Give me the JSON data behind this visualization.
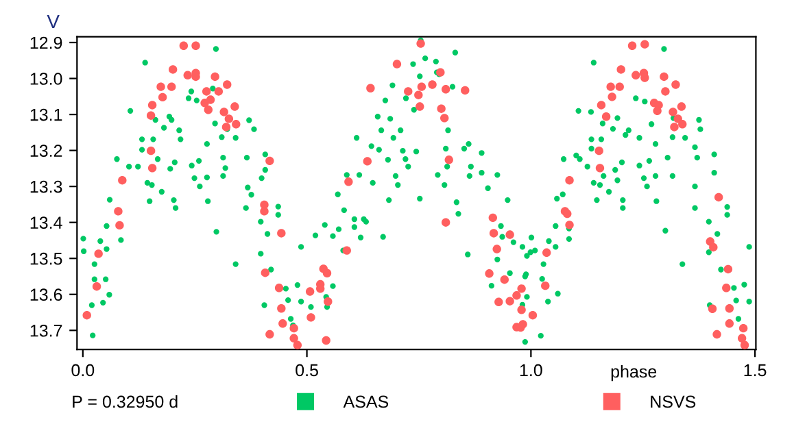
{
  "chart_data": {
    "type": "scatter",
    "ylabel": "V",
    "xlabel": "phase",
    "annotations": [
      "P = 0.32950 d"
    ],
    "xlim": [
      -0.013,
      1.502
    ],
    "xticks": [
      {
        "value": 0.0,
        "label": "0.0"
      },
      {
        "value": 0.5,
        "label": "0.5"
      },
      {
        "value": 1.0,
        "label": "1.0"
      },
      {
        "value": 1.5,
        "label": "1.5"
      }
    ],
    "ylim": [
      13.753,
      12.884
    ],
    "yticks": [
      12.9,
      {
        "value": 13.0,
        "label": "13.0"
      },
      13.1,
      13.2,
      13.3,
      13.4,
      13.5,
      13.6,
      13.7
    ],
    "grid": false,
    "legend": "bottom",
    "marker": "circle",
    "series": [
      {
        "name": "ASAS",
        "color": "#00c864",
        "x": [
          0.001,
          0.002,
          0.026,
          0.026,
          0.02,
          0.022,
          0.039,
          0.053,
          0.051,
          0.045,
          0.059,
          0.053,
          0.06,
          0.076,
          0.085,
          0.106,
          0.103,
          0.123,
          0.139,
          0.132,
          0.132,
          0.144,
          0.149,
          0.157,
          0.162,
          0.167,
          0.154,
          0.181,
          0.176,
          0.193,
          0.195,
          0.198,
          0.205,
          0.203,
          0.207,
          0.215,
          0.218,
          0.236,
          0.242,
          0.243,
          0.254,
          0.249,
          0.261,
          0.259,
          0.277,
          0.277,
          0.279,
          0.29,
          0.297,
          0.295,
          0.298,
          0.31,
          0.313,
          0.313,
          0.318,
          0.322,
          0.341,
          0.341,
          0.371,
          0.366,
          0.368,
          0.364,
          0.376,
          0.382,
          0.407,
          0.399,
          0.397,
          0.405,
          0.397,
          0.412,
          0.407,
          0.436,
          0.436,
          0.42,
          0.453,
          0.458,
          0.464,
          0.469,
          0.479,
          0.487,
          0.487,
          0.509,
          0.519,
          0.54,
          0.543,
          0.545,
          0.558,
          0.558,
          0.569,
          0.571,
          0.581,
          0.583,
          0.589,
          0.606,
          0.606,
          0.611,
          0.617,
          0.62,
          0.627,
          0.632,
          0.644,
          0.647,
          0.658,
          0.661,
          0.666,
          0.67,
          0.675,
          0.681,
          0.683,
          0.686,
          0.691,
          0.693,
          0.698,
          0.703,
          0.709,
          0.714,
          0.72,
          0.721,
          0.726,
          0.737,
          0.739,
          0.744,
          0.752,
          0.752,
          0.754,
          0.764,
          0.788,
          0.79,
          0.792,
          0.795,
          0.807,
          0.81,
          0.813,
          0.815,
          0.825,
          0.831,
          0.834,
          0.838,
          0.851,
          0.861,
          0.863,
          0.866,
          0.89,
          0.89,
          0.904,
          0.925,
          0.859,
          0.912,
          0.925,
          0.933,
          0.936,
          0.948,
          0.953,
          0.961,
          0.981,
          0.987,
          0.987,
          0.999,
          0.981,
          1.022,
          1.001,
          1.009,
          0.991,
          0.989,
          0.991,
          1.025,
          1.028,
          1.04,
          1.038,
          1.055,
          1.055,
          1.06,
          1.058,
          1.071,
          1.073,
          1.085,
          1.085,
          1.101,
          1.106,
          1.109,
          1.126,
          1.134,
          1.135,
          1.135,
          1.14,
          1.14,
          1.147,
          1.154,
          1.157,
          1.16,
          1.162,
          1.174,
          1.183,
          1.188,
          1.193,
          1.193,
          1.203,
          1.205,
          1.205,
          1.211,
          1.218,
          1.234,
          1.242,
          1.242,
          1.252,
          1.254,
          1.259,
          1.264,
          1.269,
          1.278,
          1.278,
          1.28,
          1.297,
          1.3,
          1.305,
          1.316,
          1.316,
          1.318,
          1.338,
          1.344,
          1.366,
          1.371,
          1.366,
          1.366,
          1.378,
          1.375,
          1.397,
          1.397,
          1.399,
          1.409,
          1.409,
          1.416,
          1.424,
          1.438,
          1.438,
          1.453,
          1.458,
          1.463,
          1.476,
          1.487,
          1.487
        ],
        "values": [
          13.445,
          13.48,
          13.516,
          13.558,
          13.63,
          13.714,
          13.452,
          13.474,
          13.558,
          13.623,
          13.601,
          13.41,
          13.337,
          13.224,
          13.449,
          13.09,
          13.245,
          13.245,
          12.956,
          13.169,
          13.198,
          13.29,
          13.341,
          13.169,
          13.115,
          13.224,
          13.296,
          13.137,
          13.315,
          13.106,
          13.251,
          13.115,
          13.233,
          13.338,
          13.36,
          13.144,
          13.169,
          13.055,
          13.036,
          13.242,
          13.061,
          13.277,
          13.3,
          13.229,
          13.275,
          13.182,
          13.341,
          13.028,
          12.918,
          13.125,
          13.426,
          13.163,
          13.271,
          13.22,
          13.249,
          13.141,
          13.165,
          13.516,
          13.116,
          13.22,
          13.303,
          13.36,
          13.323,
          13.141,
          13.211,
          13.277,
          13.398,
          13.63,
          13.487,
          13.432,
          13.254,
          13.356,
          13.379,
          13.531,
          13.584,
          13.616,
          13.668,
          13.686,
          13.574,
          13.468,
          13.62,
          13.635,
          13.436,
          13.407,
          13.607,
          13.635,
          13.577,
          13.438,
          13.322,
          13.419,
          13.478,
          13.366,
          13.268,
          13.391,
          13.413,
          13.165,
          13.268,
          13.442,
          13.391,
          13.398,
          13.188,
          13.29,
          13.106,
          13.198,
          13.144,
          13.44,
          13.061,
          13.226,
          13.338,
          13.112,
          13.019,
          13.165,
          13.271,
          13.296,
          13.144,
          13.201,
          13.224,
          13.055,
          13.245,
          12.96,
          13.087,
          13.203,
          12.994,
          13.334,
          12.894,
          12.944,
          12.953,
          12.983,
          13.268,
          12.988,
          13.296,
          13.195,
          13.245,
          13.144,
          13.023,
          12.928,
          13.344,
          13.376,
          13.195,
          13.182,
          13.271,
          13.245,
          13.207,
          13.262,
          13.305,
          13.268,
          13.489,
          13.576,
          13.503,
          13.41,
          13.44,
          13.338,
          13.541,
          13.455,
          13.468,
          13.55,
          13.732,
          13.483,
          13.629,
          13.715,
          13.442,
          13.478,
          13.493,
          13.544,
          13.607,
          13.557,
          13.516,
          13.452,
          13.62,
          13.41,
          13.468,
          13.598,
          13.334,
          13.322,
          13.224,
          13.417,
          13.446,
          13.214,
          13.09,
          13.224,
          13.245,
          13.093,
          13.169,
          13.195,
          13.29,
          12.956,
          13.338,
          13.296,
          13.169,
          13.125,
          13.271,
          13.315,
          13.14,
          13.254,
          13.283,
          13.11,
          13.233,
          13.338,
          13.36,
          13.157,
          13.144,
          13.055,
          13.165,
          13.242,
          13.277,
          13.064,
          13.3,
          13.229,
          13.127,
          13.182,
          13.271,
          13.341,
          12.918,
          13.423,
          13.22,
          13.163,
          13.271,
          13.11,
          13.516,
          13.165,
          13.191,
          13.22,
          13.3,
          13.36,
          13.141,
          13.115,
          13.398,
          13.483,
          13.63,
          13.262,
          13.211,
          13.432,
          13.531,
          13.357,
          13.379,
          13.582,
          13.617,
          13.668,
          13.573,
          13.468,
          13.62
        ]
      },
      {
        "name": "NSVS",
        "color": "#ff5f5f",
        "x": [
          0.009,
          0.035,
          0.031,
          0.079,
          0.082,
          0.088,
          0.152,
          0.152,
          0.155,
          0.155,
          0.174,
          0.178,
          0.198,
          0.201,
          0.225,
          0.234,
          0.252,
          0.252,
          0.252,
          0.276,
          0.272,
          0.28,
          0.285,
          0.295,
          0.303,
          0.322,
          0.315,
          0.32,
          0.326,
          0.339,
          0.342,
          0.405,
          0.405,
          0.417,
          0.407,
          0.443,
          0.438,
          0.443,
          0.446,
          0.417,
          0.471,
          0.471,
          0.479,
          0.507,
          0.509,
          0.53,
          0.53,
          0.537,
          0.545,
          0.547,
          0.543,
          0.589,
          0.593,
          0.635,
          0.642,
          0.701,
          0.726,
          0.749,
          0.752,
          0.756,
          0.754,
          0.78,
          0.798,
          0.8,
          0.807,
          0.81,
          0.817,
          0.81,
          0.853,
          0.915,
          0.917,
          0.953,
          0.924,
          0.907,
          0.941,
          0.928,
          0.953,
          0.968,
          0.968,
          0.977,
          0.979,
          0.982,
          1.004,
          0.979,
          1.032,
          1.035,
          1.076,
          1.081,
          1.086,
          1.086,
          1.152,
          1.154,
          1.157,
          1.168,
          1.178,
          1.181,
          1.198,
          1.201,
          1.226,
          1.254,
          1.234,
          1.252,
          1.254,
          1.297,
          1.275,
          1.285,
          1.282,
          1.3,
          1.323,
          1.317,
          1.336,
          1.328,
          1.338,
          1.32,
          1.419,
          1.4,
          1.407,
          1.44,
          1.405,
          1.436,
          1.443,
          1.443,
          1.415,
          1.474,
          1.471,
          1.477
        ],
        "values": [
          13.658,
          13.487,
          13.578,
          13.369,
          13.408,
          13.283,
          13.103,
          13.201,
          13.249,
          13.074,
          13.023,
          13.052,
          13.023,
          12.975,
          12.909,
          12.991,
          12.909,
          12.985,
          12.995,
          13.036,
          13.068,
          13.087,
          13.059,
          12.995,
          13.036,
          13.017,
          13.093,
          13.135,
          13.112,
          13.078,
          13.127,
          13.351,
          13.369,
          13.229,
          13.54,
          13.43,
          13.582,
          13.639,
          13.681,
          13.711,
          13.694,
          13.722,
          13.741,
          13.592,
          13.664,
          13.572,
          13.584,
          13.529,
          13.541,
          13.62,
          13.728,
          13.478,
          13.287,
          13.23,
          13.027,
          12.96,
          13.036,
          13.046,
          13.078,
          13.023,
          12.903,
          13.017,
          12.983,
          13.084,
          13.11,
          13.03,
          13.226,
          13.4,
          13.033,
          13.387,
          13.43,
          13.434,
          13.474,
          13.542,
          13.559,
          13.621,
          13.619,
          13.603,
          13.691,
          13.692,
          13.643,
          13.683,
          13.658,
          13.584,
          13.576,
          13.484,
          13.369,
          13.376,
          13.407,
          13.283,
          13.201,
          13.249,
          13.074,
          13.106,
          13.023,
          13.051,
          13.023,
          12.975,
          12.909,
          12.905,
          12.991,
          12.985,
          12.998,
          12.995,
          13.068,
          13.074,
          13.09,
          13.036,
          13.017,
          13.093,
          13.078,
          13.112,
          13.127,
          13.135,
          13.33,
          13.453,
          13.469,
          13.53,
          13.64,
          13.582,
          13.639,
          13.681,
          13.711,
          13.694,
          13.722,
          13.741
        ]
      }
    ]
  }
}
